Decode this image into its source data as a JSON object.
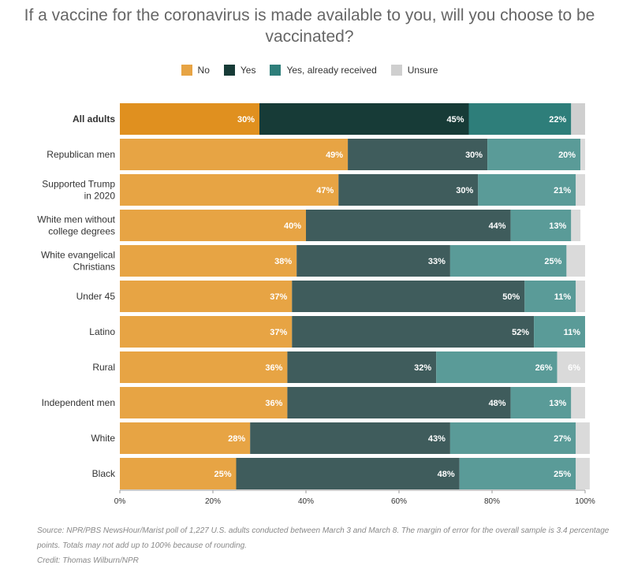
{
  "title": "If a vaccine for the coronavirus is made available to you, will you choose to be vaccinated?",
  "legend": [
    {
      "name": "No",
      "color": "#e7a444"
    },
    {
      "name": "Yes",
      "color": "#173b37"
    },
    {
      "name": "Yes, already received",
      "color": "#2e7e7a"
    },
    {
      "name": "Unsure",
      "color": "#cfcfcf"
    }
  ],
  "chart_data": {
    "type": "bar",
    "orientation": "horizontal",
    "stacked": true,
    "xlim": [
      0,
      100
    ],
    "x_ticks": [
      "0%",
      "20%",
      "40%",
      "60%",
      "80%",
      "100%"
    ],
    "grid": false,
    "legend_position": "top",
    "highlight_category": "All adults",
    "categories": [
      "All adults",
      "Republican men",
      "Supported Trump in 2020",
      "White men without college degrees",
      "White evangelical Christians",
      "Under 45",
      "Latino",
      "Rural",
      "Independent men",
      "White",
      "Black"
    ],
    "category_lines": [
      [
        "All adults"
      ],
      [
        "Republican men"
      ],
      [
        "Supported Trump",
        "in 2020"
      ],
      [
        "White men without",
        "college degrees"
      ],
      [
        "White evangelical",
        "Christians"
      ],
      [
        "Under 45"
      ],
      [
        "Latino"
      ],
      [
        "Rural"
      ],
      [
        "Independent men"
      ],
      [
        "White"
      ],
      [
        "Black"
      ]
    ],
    "series": [
      {
        "name": "No",
        "values": [
          30,
          49,
          47,
          40,
          38,
          37,
          37,
          36,
          36,
          28,
          25
        ]
      },
      {
        "name": "Yes",
        "values": [
          45,
          30,
          30,
          44,
          33,
          50,
          52,
          32,
          48,
          43,
          48
        ]
      },
      {
        "name": "Yes, already received",
        "values": [
          22,
          20,
          21,
          13,
          25,
          11,
          11,
          26,
          13,
          27,
          25
        ]
      },
      {
        "name": "Unsure",
        "values": [
          3,
          1,
          2,
          2,
          4,
          2,
          0,
          6,
          3,
          3,
          3
        ]
      }
    ],
    "data_labels": [
      [
        "30%",
        "45%",
        "22%",
        ""
      ],
      [
        "49%",
        "30%",
        "20%",
        ""
      ],
      [
        "47%",
        "30%",
        "21%",
        ""
      ],
      [
        "40%",
        "44%",
        "13%",
        ""
      ],
      [
        "38%",
        "33%",
        "25%",
        ""
      ],
      [
        "37%",
        "50%",
        "11%",
        ""
      ],
      [
        "37%",
        "52%",
        "11%",
        ""
      ],
      [
        "36%",
        "32%",
        "26%",
        "6%"
      ],
      [
        "36%",
        "48%",
        "13%",
        ""
      ],
      [
        "28%",
        "43%",
        "27%",
        ""
      ],
      [
        "25%",
        "48%",
        "25%",
        ""
      ]
    ]
  },
  "colors": {
    "highlight": [
      "#e0901f",
      "#173b37",
      "#2e7e7a",
      "#cfcfcf"
    ],
    "normal": [
      "#e7a444",
      "#3f5c5c",
      "#5a9b98",
      "#dadada"
    ]
  },
  "footer": {
    "source": "Source: NPR/PBS NewsHour/Marist poll of 1,227 U.S. adults conducted between March 3 and March 8. The margin of error for the overall sample is 3.4 percentage points. Totals may not add up to 100% because of rounding.",
    "credit": "Credit: Thomas Wilburn/NPR"
  }
}
